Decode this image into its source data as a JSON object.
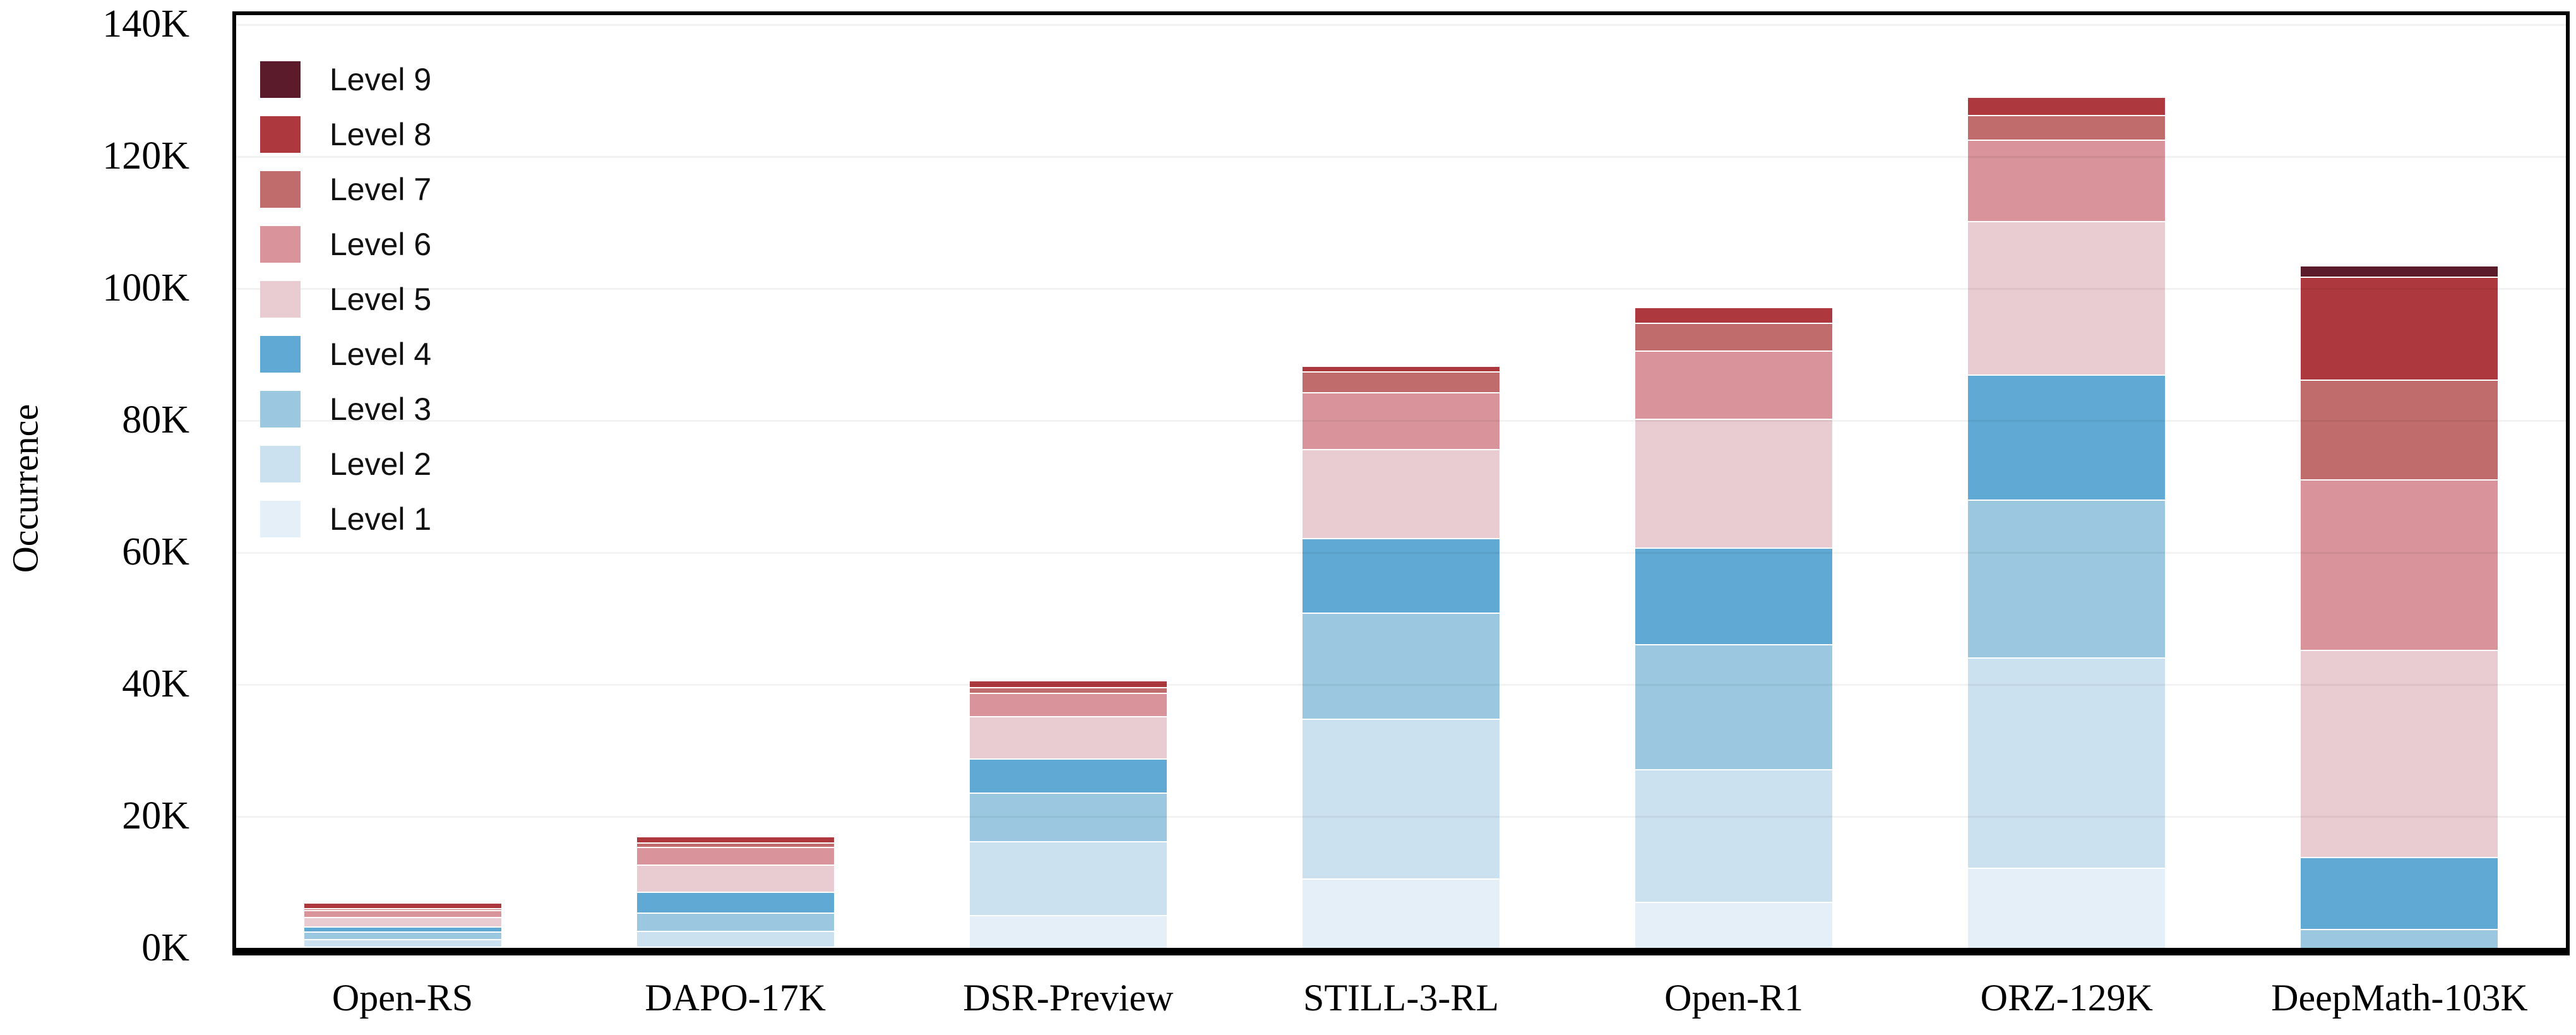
{
  "figure": {
    "background": "#ffffff"
  },
  "y_axis": {
    "label": "Occurrence",
    "tick_labels": [
      "0K",
      "20K",
      "40K",
      "60K",
      "80K",
      "100K",
      "120K",
      "140K"
    ],
    "max_k": 140
  },
  "legend": {
    "position": "top-left-inside",
    "order_top_to_bottom": [
      "Level 9",
      "Level 8",
      "Level 7",
      "Level 6",
      "Level 5",
      "Level 4",
      "Level 3",
      "Level 2",
      "Level 1"
    ]
  },
  "chart_data": {
    "type": "bar",
    "stacked": true,
    "title": "",
    "xlabel": "",
    "ylabel": "Occurrence",
    "ylim": [
      0,
      140000
    ],
    "grid": "horizontal-faint",
    "unit": "thousands",
    "categories": [
      "Open-RS",
      "DAPO-17K",
      "DSR-Preview",
      "STILL-3-RL",
      "Open-R1",
      "ORZ-129K",
      "DeepMath-103K"
    ],
    "series": [
      {
        "name": "Level 1",
        "color": "#e5eff8",
        "values_k": [
          0.2,
          0.1,
          5.0,
          10.5,
          7.0,
          12.2,
          0
        ]
      },
      {
        "name": "Level 2",
        "color": "#cce1ef",
        "values_k": [
          1.15,
          2.4,
          11.2,
          24.2,
          20.1,
          31.8,
          0
        ]
      },
      {
        "name": "Level 3",
        "color": "#9bc7e1",
        "values_k": [
          1.15,
          2.75,
          7.3,
          16.1,
          18.9,
          23.9,
          2.9
        ]
      },
      {
        "name": "Level 4",
        "color": "#60a9d4",
        "values_k": [
          0.75,
          3.2,
          5.25,
          11.3,
          14.7,
          19.0,
          10.9
        ]
      },
      {
        "name": "Level 5",
        "color": "#e8ccd1",
        "values_k": [
          1.45,
          4.05,
          6.4,
          13.5,
          19.5,
          23.2,
          31.4
        ]
      },
      {
        "name": "Level 6",
        "color": "#d8949a",
        "values_k": [
          1.05,
          2.7,
          3.5,
          8.6,
          10.3,
          12.4,
          25.8
        ]
      },
      {
        "name": "Level 7",
        "color": "#c16c6c",
        "values_k": [
          0.25,
          0.7,
          0.9,
          3.2,
          4.25,
          3.7,
          15.1
        ]
      },
      {
        "name": "Level 8",
        "color": "#ad383d",
        "values_k": [
          0.7,
          0.8,
          0.8,
          0.65,
          2.15,
          2.6,
          15.6
        ]
      },
      {
        "name": "Level 9",
        "color": "#5c1b2b",
        "values_k": [
          0,
          0,
          0,
          0,
          0,
          0,
          1.6
        ]
      }
    ],
    "approx_totals_k": [
      6.8,
      16.7,
      40.3,
      88.1,
      96.9,
      128.8,
      103.3
    ]
  }
}
